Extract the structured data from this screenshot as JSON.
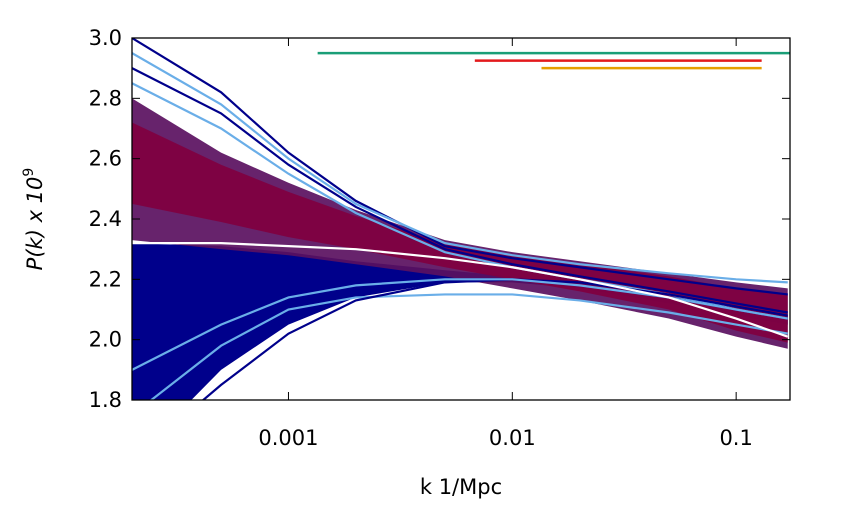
{
  "chart_data": {
    "type": "line",
    "xlabel": "k 1/Mpc",
    "ylabel": "P(k) x 10",
    "ylabel_exponent": "9",
    "xscale": "log",
    "xlim": [
      0.0002,
      0.174
    ],
    "ylim": [
      1.8,
      3.0
    ],
    "xticks": [
      0.001,
      0.01,
      0.1
    ],
    "yticks": [
      1.8,
      {
        "value": 2,
        "label": "2.0"
      },
      2.2,
      2.4,
      2.6,
      2.8,
      {
        "value": 3,
        "label": "3.0"
      }
    ],
    "x": [
      0.0002,
      0.0005,
      0.001,
      0.002,
      0.005,
      0.01,
      0.02,
      0.05,
      0.1,
      0.17
    ],
    "bands": [
      {
        "color": "#00008b",
        "upper": [
          2.32,
          2.31,
          2.29,
          2.26,
          2.23,
          2.21,
          2.19,
          2.15,
          2.11,
          2.08
        ],
        "lower": [
          1.6,
          1.9,
          2.05,
          2.14,
          2.19,
          2.19,
          2.17,
          2.12,
          2.08,
          2.05
        ]
      },
      {
        "color": "#5a1060",
        "upper": [
          2.8,
          2.62,
          2.52,
          2.43,
          2.33,
          2.29,
          2.26,
          2.22,
          2.19,
          2.17
        ],
        "lower": [
          2.33,
          2.3,
          2.28,
          2.25,
          2.21,
          2.17,
          2.13,
          2.07,
          2.01,
          1.97
        ]
      },
      {
        "color": "#800040",
        "upper": [
          2.72,
          2.58,
          2.49,
          2.41,
          2.32,
          2.28,
          2.25,
          2.21,
          2.17,
          2.15
        ],
        "lower": [
          2.45,
          2.39,
          2.34,
          2.3,
          2.24,
          2.2,
          2.16,
          2.1,
          2.03,
          1.99
        ]
      }
    ],
    "series": [
      {
        "color": "#00008b",
        "values": [
          3.0,
          2.82,
          2.62,
          2.46,
          2.31,
          2.27,
          2.24,
          2.2,
          2.17,
          2.15
        ]
      },
      {
        "color": "#6aaee8",
        "values": [
          2.95,
          2.78,
          2.6,
          2.45,
          2.32,
          2.28,
          2.25,
          2.22,
          2.2,
          2.19
        ]
      },
      {
        "color": "#00008b",
        "values": [
          2.9,
          2.75,
          2.58,
          2.44,
          2.3,
          2.25,
          2.21,
          2.16,
          2.12,
          2.09
        ]
      },
      {
        "color": "#6aaee8",
        "values": [
          2.85,
          2.7,
          2.55,
          2.42,
          2.29,
          2.24,
          2.2,
          2.15,
          2.1,
          2.07
        ]
      },
      {
        "color": "#00008b",
        "values": [
          1.7,
          1.95,
          2.08,
          2.16,
          2.2,
          2.2,
          2.18,
          2.14,
          2.1,
          2.07
        ]
      },
      {
        "color": "#6aaee8",
        "values": [
          1.75,
          1.98,
          2.1,
          2.14,
          2.15,
          2.15,
          2.13,
          2.09,
          2.05,
          2.02
        ]
      },
      {
        "color": "#00008b",
        "values": [
          1.6,
          1.85,
          2.02,
          2.13,
          2.19,
          2.2,
          2.19,
          2.15,
          2.11,
          2.08
        ]
      },
      {
        "color": "#6aaee8",
        "values": [
          1.9,
          2.05,
          2.14,
          2.18,
          2.2,
          2.2,
          2.18,
          2.14,
          2.1,
          2.07
        ]
      },
      {
        "color": "#ffffff",
        "values": [
          2.32,
          2.32,
          2.31,
          2.3,
          2.27,
          2.24,
          2.2,
          2.14,
          2.07,
          2.01
        ]
      },
      {
        "color": "#1a9e77",
        "x": [
          0.00135,
          0.174
        ],
        "values": [
          2.95,
          2.95
        ]
      },
      {
        "color": "#e31a1c",
        "x": [
          0.0068,
          0.13
        ],
        "values": [
          2.925,
          2.925
        ]
      },
      {
        "color": "#e69f00",
        "x": [
          0.0135,
          0.13
        ],
        "values": [
          2.9,
          2.9
        ]
      }
    ]
  }
}
